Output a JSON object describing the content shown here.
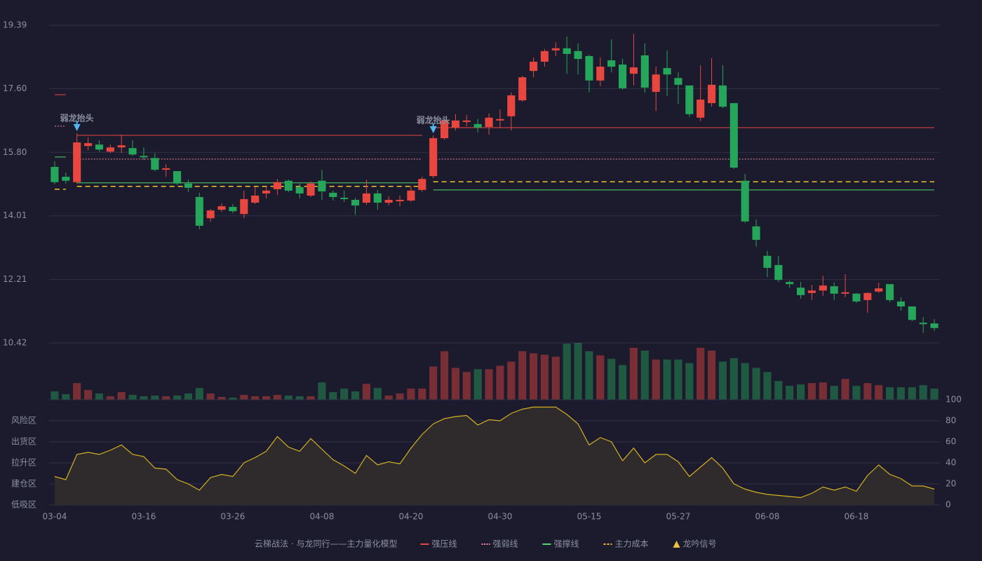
{
  "chart_data": [
    {
      "type": "candlestick",
      "title": "云梯战法 · 与龙同行——主力量化模型",
      "categories": [
        "03-04",
        null,
        null,
        null,
        null,
        null,
        null,
        null,
        "03-16",
        null,
        null,
        null,
        null,
        null,
        null,
        null,
        "03-26",
        null,
        null,
        null,
        null,
        null,
        null,
        null,
        "04-08",
        null,
        null,
        null,
        null,
        null,
        null,
        null,
        "04-20",
        null,
        null,
        null,
        null,
        null,
        null,
        null,
        "04-30",
        null,
        null,
        null,
        null,
        null,
        null,
        null,
        "05-15",
        null,
        null,
        null,
        null,
        null,
        null,
        null,
        "05-27",
        null,
        null,
        null,
        null,
        null,
        null,
        null,
        "06-08",
        null,
        null,
        null,
        null,
        null,
        null,
        null,
        "06-18",
        null,
        null,
        null,
        null,
        null,
        null,
        null
      ],
      "open": [
        15.39,
        15.11,
        14.96,
        15.98,
        16.02,
        15.82,
        15.94,
        15.92,
        15.7,
        15.64,
        15.31,
        15.27,
        14.92,
        14.54,
        13.94,
        14.18,
        14.26,
        14.06,
        14.38,
        14.64,
        14.76,
        15.0,
        14.82,
        14.58,
        15.0,
        14.66,
        14.52,
        14.46,
        14.38,
        14.64,
        14.38,
        14.42,
        14.44,
        14.74,
        15.13,
        16.2,
        16.5,
        16.66,
        16.6,
        16.52,
        16.7,
        16.82,
        17.27,
        18.1,
        18.36,
        18.68,
        18.74,
        18.66,
        18.52,
        17.83,
        18.4,
        18.28,
        18.02,
        18.54,
        17.51,
        18.18,
        17.9,
        17.69,
        16.78,
        17.19,
        17.69,
        17.19,
        15.0,
        13.71,
        12.88,
        12.62,
        12.14,
        11.98,
        11.83,
        11.9,
        12.02,
        11.81,
        11.81,
        11.63,
        11.87,
        12.08,
        11.59,
        11.45,
        10.99,
        10.97
      ],
      "high": [
        15.55,
        15.23,
        16.34,
        16.22,
        16.14,
        16.02,
        16.3,
        16.14,
        15.94,
        15.78,
        15.47,
        15.27,
        15.03,
        14.66,
        14.2,
        14.36,
        14.34,
        14.72,
        14.82,
        14.84,
        15.05,
        15.03,
        14.92,
        14.98,
        15.31,
        14.72,
        14.72,
        14.52,
        15.03,
        14.74,
        14.56,
        14.58,
        14.86,
        15.11,
        16.28,
        16.74,
        16.88,
        16.86,
        16.74,
        16.9,
        17.01,
        17.49,
        17.96,
        18.48,
        18.72,
        18.91,
        19.07,
        18.88,
        18.56,
        18.48,
        18.99,
        18.44,
        19.15,
        18.88,
        18.22,
        18.68,
        18.06,
        17.69,
        18.26,
        18.46,
        18.26,
        17.19,
        15.19,
        13.91,
        13.02,
        12.88,
        12.18,
        12.14,
        12.06,
        12.32,
        12.12,
        12.36,
        11.83,
        11.85,
        12.12,
        12.08,
        11.71,
        11.45,
        11.15,
        11.09
      ],
      "low": [
        14.9,
        14.92,
        14.92,
        15.86,
        15.82,
        15.78,
        15.78,
        15.7,
        15.59,
        15.27,
        15.11,
        14.88,
        14.68,
        13.63,
        13.84,
        14.12,
        14.08,
        13.94,
        14.34,
        14.5,
        14.6,
        14.68,
        14.5,
        14.54,
        14.46,
        14.44,
        14.4,
        14.04,
        14.32,
        14.18,
        14.3,
        14.28,
        14.4,
        14.68,
        15.07,
        16.16,
        16.42,
        16.54,
        16.36,
        16.3,
        16.48,
        16.42,
        17.23,
        17.92,
        18.22,
        18.52,
        18.02,
        18.0,
        17.49,
        17.67,
        18.06,
        17.57,
        17.69,
        17.49,
        16.97,
        17.39,
        17.17,
        16.8,
        16.68,
        17.09,
        17.05,
        15.33,
        13.81,
        13.14,
        12.28,
        12.14,
        11.98,
        11.67,
        11.63,
        11.75,
        11.63,
        11.71,
        11.55,
        11.27,
        11.83,
        11.57,
        11.33,
        11.03,
        10.7,
        10.76
      ],
      "close": [
        14.96,
        15.0,
        16.08,
        16.06,
        15.88,
        15.94,
        16.0,
        15.74,
        15.66,
        15.31,
        15.35,
        14.92,
        14.8,
        13.73,
        14.16,
        14.28,
        14.14,
        14.48,
        14.58,
        14.72,
        14.96,
        14.72,
        14.64,
        14.92,
        14.7,
        14.54,
        14.48,
        14.3,
        14.64,
        14.38,
        14.46,
        14.46,
        14.72,
        15.05,
        16.2,
        16.7,
        16.7,
        16.7,
        16.5,
        16.78,
        16.74,
        17.41,
        17.92,
        18.36,
        18.66,
        18.74,
        18.58,
        18.44,
        17.83,
        18.22,
        18.22,
        17.61,
        18.2,
        17.63,
        18.0,
        18.0,
        17.71,
        16.88,
        17.29,
        17.71,
        17.09,
        15.37,
        13.85,
        13.33,
        12.54,
        12.2,
        12.08,
        11.77,
        11.9,
        12.04,
        11.81,
        11.85,
        11.59,
        11.83,
        11.96,
        11.63,
        11.45,
        11.07,
        10.95,
        10.84
      ],
      "up_color": "#e8473f",
      "down_color": "#26a65b",
      "ylim": [
        10.42,
        19.39
      ],
      "yticks": [
        10.42,
        12.21,
        14.01,
        {
          "value": 15.8,
          "label": "15.80"
        },
        {
          "value": 17.6,
          "label": "17.60"
        },
        19.39
      ],
      "grid": true,
      "lines": [
        {
          "name": "强压线",
          "color": "#e8473f",
          "dash": "solid",
          "segments": [
            {
              "start": 0,
              "end": 1,
              "value": 17.43
            },
            {
              "start": 2,
              "end": 33,
              "value": 16.28
            },
            {
              "start": 34,
              "end": 79,
              "value": 16.5
            }
          ]
        },
        {
          "name": "强弱线",
          "color": "#f08a9a",
          "dash": "dotted",
          "segments": [
            {
              "start": 0,
              "end": 1,
              "value": 16.54
            },
            {
              "start": 2,
              "end": 33,
              "value": 15.61
            },
            {
              "start": 34,
              "end": 79,
              "value": 15.61
            }
          ]
        },
        {
          "name": "强撑线",
          "color": "#4ed86a",
          "dash": "solid",
          "segments": [
            {
              "start": 0,
              "end": 1,
              "value": 15.67
            },
            {
              "start": 2,
              "end": 33,
              "value": 14.94
            },
            {
              "start": 34,
              "end": 79,
              "value": 14.74
            }
          ]
        },
        {
          "name": "主力成本",
          "color": "#f0c030",
          "dash": "dashed",
          "segments": [
            {
              "start": 0,
              "end": 1,
              "value": 14.76
            },
            {
              "start": 2,
              "end": 33,
              "value": 14.84
            },
            {
              "start": 34,
              "end": 79,
              "value": 14.97
            }
          ]
        }
      ],
      "signal": {
        "name": "龙吟信号",
        "color": "#4db8f0",
        "legend_color": "#f0c040",
        "label_color": "#8fd0f8",
        "points": [
          {
            "index": 2,
            "label": "弱龙抬头"
          },
          {
            "index": 34,
            "label": "弱龙抬头"
          }
        ]
      }
    },
    {
      "type": "bar",
      "values": [
        12,
        8,
        24,
        14,
        9,
        5,
        11,
        7,
        5,
        6,
        5,
        6,
        9,
        17,
        9,
        4,
        3,
        7,
        5,
        5,
        7,
        6,
        5,
        5,
        25,
        11,
        16,
        12,
        23,
        17,
        6,
        9,
        16,
        16,
        48,
        70,
        46,
        40,
        44,
        44,
        49,
        55,
        70,
        67,
        65,
        62,
        81,
        82,
        70,
        64,
        59,
        50,
        75,
        71,
        58,
        58,
        58,
        53,
        75,
        71,
        55,
        60,
        53,
        46,
        40,
        27,
        20,
        22,
        24,
        25,
        20,
        30,
        20,
        24,
        21,
        18,
        18,
        18,
        21,
        16
      ]
    },
    {
      "type": "line",
      "values": [
        27,
        24,
        48,
        50,
        48,
        52,
        57,
        48,
        46,
        35,
        34,
        24,
        20,
        14,
        26,
        29,
        27,
        40,
        45,
        51,
        65,
        55,
        51,
        63,
        53,
        43,
        37,
        30,
        47,
        38,
        41,
        39,
        54,
        67,
        77,
        82,
        84,
        85,
        76,
        81,
        80,
        87,
        91,
        93,
        93,
        93,
        86,
        77,
        57,
        64,
        60,
        42,
        54,
        40,
        48,
        48,
        41,
        27,
        36,
        45,
        35,
        20,
        15,
        12,
        10,
        9,
        8,
        7,
        11,
        17,
        14,
        17,
        13,
        28,
        38,
        29,
        25,
        18,
        18,
        15
      ],
      "color": "#d4b021",
      "fill": "#2f2b2c",
      "ylim": [
        0,
        100
      ],
      "yticks": [
        0,
        20,
        40,
        60,
        80,
        100
      ],
      "ytick_colors": [
        "#e84040",
        "#e8843d",
        "#4a9ff0",
        "#e040e0",
        "#e8a33d",
        "#3adf4e"
      ],
      "zones": [
        {
          "label": "低吸区",
          "value": 0,
          "color": "#e84040"
        },
        {
          "label": "建仓区",
          "value": 20,
          "color": "#e8603d"
        },
        {
          "label": "拉升区",
          "value": 40,
          "color": "#4a9ff0"
        },
        {
          "label": "出货区",
          "value": 60,
          "color": "#e040e0"
        },
        {
          "label": "风险区",
          "value": 80,
          "color": "#e8a33d"
        }
      ]
    }
  ]
}
